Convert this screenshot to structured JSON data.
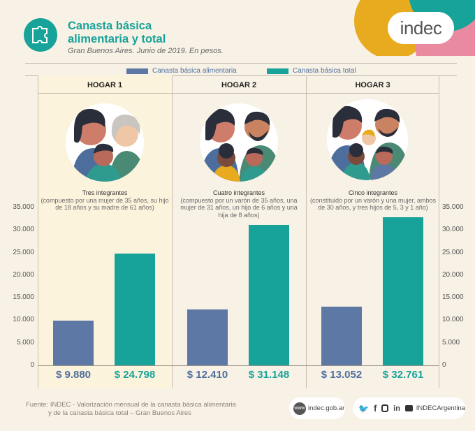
{
  "header": {
    "title": "Canasta básica alimentaria y total",
    "subtitle": "Gran Buenos Aires. Junio de 2019. En pesos.",
    "brand": "indec"
  },
  "legend": [
    {
      "label": "Canasta básica alimentaria",
      "color": "#5d78a4"
    },
    {
      "label": "Canasta básica total",
      "color": "#17a399"
    }
  ],
  "colors": {
    "alimentaria": "#5d78a4",
    "total": "#17a399",
    "value_alimentaria": "#4d6e9c",
    "value_total": "#17a399",
    "background": "#f8f1e5",
    "highlight_panel": "#fcf3dc"
  },
  "chart_data": {
    "type": "bar",
    "categories": [
      "HOGAR 1",
      "HOGAR 2",
      "HOGAR 3"
    ],
    "series": [
      {
        "name": "Canasta básica alimentaria",
        "values": [
          9880,
          12410,
          13052
        ]
      },
      {
        "name": "Canasta básica total",
        "values": [
          24798,
          31148,
          32761
        ]
      }
    ],
    "ylim": [
      0,
      35000
    ],
    "yticks": [
      "35.000",
      "30.000",
      "25.000",
      "20.000",
      "15.000",
      "10.000",
      "5.000",
      "0"
    ],
    "value_labels": [
      [
        "$ 9.880",
        "$ 24.798"
      ],
      [
        "$ 12.410",
        "$ 31.148"
      ],
      [
        "$ 13.052",
        "$ 32.761"
      ]
    ],
    "households": [
      {
        "title": "HOGAR 1",
        "members": "Tres integrantes",
        "detail": "(compuesto por una mujer de 35 años, su hijo de 18 años y su madre de 61 años)"
      },
      {
        "title": "HOGAR 2",
        "members": "Cuatro integrantes",
        "detail": "(compuesto por un varón de 35 años, una mujer de 31 años, un hijo de 6 años y una hija de 8 años)"
      },
      {
        "title": "HOGAR 3",
        "members": "Cinco integrantes",
        "detail": "(constituido por un varón y una mujer, ambos de 30 años, y tres hijos de 5, 3 y 1 año)"
      }
    ]
  },
  "footer": {
    "source_line1": "Fuente: INDEC - Valorización mensual de la canasta básica alimentaria",
    "source_line2": "y de la canasta básica total – Gran Buenos Aires",
    "website": "indec.gob.ar",
    "social_handle": "INDECArgentina",
    "social_icons": [
      "twitter-icon",
      "facebook-icon",
      "instagram-icon",
      "linkedin-icon",
      "youtube-icon"
    ]
  }
}
